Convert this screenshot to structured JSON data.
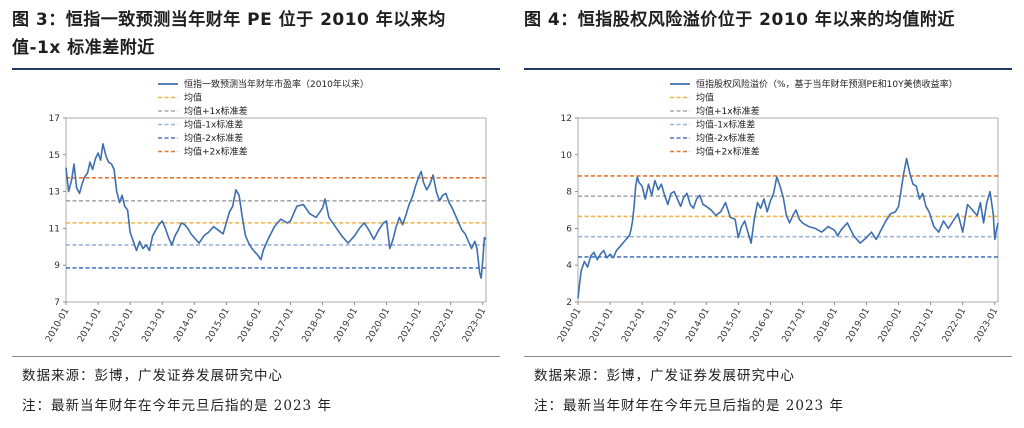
{
  "notes": {
    "source": "数据来源：彭博，广发证券发展研究中心",
    "remark": "注：最新当年财年在今年元旦后指的是 2023 年"
  },
  "chart_data": [
    {
      "id": "fig3",
      "type": "line",
      "title": "图 3：恒指一致预测当年财年 PE 位于 2010 年以来均值-1x 标准差附近",
      "title_lines": [
        "图 3：恒指一致预测当年财年 PE 位于 2010 年以来均",
        "值-1x 标准差附近"
      ],
      "xlabel": "",
      "ylabel": "",
      "ylim": [
        7,
        17
      ],
      "yticks": [
        7,
        9,
        11,
        13,
        15,
        17
      ],
      "xlim": [
        2010.0,
        2023.1
      ],
      "xticks": [
        "2010-01",
        "2011-01",
        "2012-01",
        "2013-01",
        "2014-01",
        "2015-01",
        "2016-01",
        "2017-01",
        "2018-01",
        "2019-01",
        "2020-01",
        "2021-01",
        "2022-01",
        "2023-01"
      ],
      "legend_position": "top-right",
      "series": [
        {
          "name": "恒指一致预测当年财年市盈率（2010年以来）",
          "color": "#3d6fb0",
          "x": [
            2010.0,
            2010.08,
            2010.17,
            2010.25,
            2010.33,
            2010.42,
            2010.5,
            2010.58,
            2010.67,
            2010.75,
            2010.83,
            2010.92,
            2011.0,
            2011.08,
            2011.15,
            2011.25,
            2011.33,
            2011.42,
            2011.5,
            2011.58,
            2011.67,
            2011.75,
            2011.83,
            2011.92,
            2012.0,
            2012.1,
            2012.2,
            2012.3,
            2012.4,
            2012.5,
            2012.6,
            2012.7,
            2012.8,
            2012.9,
            2013.0,
            2013.1,
            2013.2,
            2013.3,
            2013.4,
            2013.5,
            2013.6,
            2013.7,
            2013.8,
            2013.9,
            2014.0,
            2014.15,
            2014.3,
            2014.45,
            2014.6,
            2014.75,
            2014.9,
            2015.0,
            2015.1,
            2015.2,
            2015.3,
            2015.4,
            2015.5,
            2015.6,
            2015.7,
            2015.8,
            2015.9,
            2016.0,
            2016.08,
            2016.15,
            2016.3,
            2016.5,
            2016.7,
            2016.9,
            2017.0,
            2017.2,
            2017.4,
            2017.6,
            2017.8,
            2018.0,
            2018.08,
            2018.2,
            2018.4,
            2018.6,
            2018.8,
            2019.0,
            2019.15,
            2019.3,
            2019.45,
            2019.6,
            2019.75,
            2019.9,
            2020.0,
            2020.1,
            2020.2,
            2020.3,
            2020.4,
            2020.5,
            2020.6,
            2020.7,
            2020.8,
            2020.9,
            2021.0,
            2021.08,
            2021.15,
            2021.25,
            2021.35,
            2021.45,
            2021.55,
            2021.65,
            2021.75,
            2021.85,
            2021.95,
            2022.05,
            2022.15,
            2022.25,
            2022.35,
            2022.45,
            2022.55,
            2022.65,
            2022.75,
            2022.82,
            2022.9,
            2022.95,
            2023.0,
            2023.05,
            2023.1
          ],
          "values": [
            14.3,
            13.0,
            13.6,
            14.5,
            13.2,
            12.9,
            13.4,
            13.8,
            14.0,
            14.6,
            14.2,
            14.8,
            15.1,
            14.7,
            15.6,
            14.9,
            14.6,
            14.5,
            14.2,
            13.0,
            12.4,
            12.8,
            12.2,
            12.0,
            10.8,
            10.3,
            9.8,
            10.3,
            9.9,
            10.1,
            9.8,
            10.6,
            10.9,
            11.2,
            11.4,
            11.0,
            10.5,
            10.1,
            10.6,
            10.9,
            11.3,
            11.2,
            11.0,
            10.7,
            10.5,
            10.2,
            10.6,
            10.8,
            11.1,
            10.9,
            10.7,
            11.3,
            11.9,
            12.2,
            13.1,
            12.8,
            11.6,
            10.6,
            10.2,
            9.9,
            9.7,
            9.5,
            9.3,
            9.8,
            10.4,
            11.1,
            11.5,
            11.3,
            11.4,
            12.2,
            12.3,
            11.8,
            11.6,
            12.1,
            12.6,
            11.6,
            11.1,
            10.6,
            10.2,
            10.6,
            11.0,
            11.3,
            10.9,
            10.4,
            10.9,
            11.3,
            11.4,
            9.9,
            10.4,
            11.1,
            11.6,
            11.2,
            11.7,
            12.3,
            12.7,
            13.3,
            13.8,
            14.1,
            13.5,
            13.1,
            13.4,
            13.9,
            13.0,
            12.5,
            12.8,
            12.9,
            12.4,
            12.1,
            11.7,
            11.3,
            10.9,
            10.7,
            10.3,
            9.9,
            10.3,
            9.9,
            8.6,
            8.3,
            9.3,
            10.5,
            10.4
          ]
        }
      ],
      "ref_lines": [
        {
          "name": "均值",
          "value": 11.3,
          "color": "#f0b24a"
        },
        {
          "name": "均值+1x标准差",
          "value": 12.5,
          "color": "#a9a9a9"
        },
        {
          "name": "均值-1x标准差",
          "value": 10.1,
          "color": "#9fb3d6"
        },
        {
          "name": "均值-2x标准差",
          "value": 8.85,
          "color": "#4b78c0"
        },
        {
          "name": "均值+2x标准差",
          "value": 13.75,
          "color": "#e07832"
        }
      ]
    },
    {
      "id": "fig4",
      "type": "line",
      "title": "图 4：恒指股权风险溢价位于 2010 年以来的均值附近",
      "title_lines": [
        "图 4：恒指股权风险溢价位于 2010 年以来的均值附近"
      ],
      "xlabel": "",
      "ylabel": "",
      "ylim": [
        2,
        12
      ],
      "yticks": [
        2,
        4,
        6,
        8,
        10,
        12
      ],
      "xlim": [
        2010.0,
        2023.1
      ],
      "xticks": [
        "2010-01",
        "2011-01",
        "2012-01",
        "2013-01",
        "2014-01",
        "2015-01",
        "2016-01",
        "2017-01",
        "2018-01",
        "2019-01",
        "2020-01",
        "2021-01",
        "2022-01",
        "2023-01"
      ],
      "legend_position": "top-right",
      "series": [
        {
          "name": "恒指股权风险溢价（%，基于当年财年预测PE和10Y美债收益率）",
          "color": "#3d6fb0",
          "x": [
            2010.0,
            2010.05,
            2010.1,
            2010.2,
            2010.3,
            2010.4,
            2010.5,
            2010.6,
            2010.7,
            2010.8,
            2010.9,
            2011.0,
            2011.1,
            2011.2,
            2011.3,
            2011.4,
            2011.5,
            2011.6,
            2011.65,
            2011.7,
            2011.75,
            2011.8,
            2011.85,
            2011.9,
            2012.0,
            2012.1,
            2012.2,
            2012.3,
            2012.4,
            2012.5,
            2012.6,
            2012.7,
            2012.8,
            2012.9,
            2013.0,
            2013.1,
            2013.2,
            2013.3,
            2013.4,
            2013.5,
            2013.6,
            2013.7,
            2013.8,
            2013.9,
            2014.0,
            2014.15,
            2014.3,
            2014.45,
            2014.6,
            2014.75,
            2014.9,
            2015.0,
            2015.1,
            2015.2,
            2015.3,
            2015.4,
            2015.5,
            2015.6,
            2015.7,
            2015.8,
            2015.9,
            2016.0,
            2016.1,
            2016.2,
            2016.3,
            2016.4,
            2016.5,
            2016.6,
            2016.7,
            2016.8,
            2016.9,
            2017.0,
            2017.2,
            2017.4,
            2017.6,
            2017.8,
            2018.0,
            2018.1,
            2018.2,
            2018.4,
            2018.6,
            2018.8,
            2019.0,
            2019.15,
            2019.3,
            2019.45,
            2019.6,
            2019.75,
            2019.9,
            2020.0,
            2020.08,
            2020.15,
            2020.25,
            2020.35,
            2020.45,
            2020.55,
            2020.65,
            2020.75,
            2020.85,
            2020.95,
            2021.1,
            2021.25,
            2021.4,
            2021.55,
            2021.7,
            2021.85,
            2022.0,
            2022.15,
            2022.3,
            2022.45,
            2022.55,
            2022.65,
            2022.75,
            2022.85,
            2022.95,
            2023.0,
            2023.05,
            2023.1
          ],
          "values": [
            2.2,
            3.0,
            3.7,
            4.2,
            3.9,
            4.5,
            4.7,
            4.3,
            4.6,
            4.8,
            4.4,
            4.6,
            4.4,
            4.8,
            5.0,
            5.2,
            5.4,
            5.6,
            5.9,
            6.4,
            7.2,
            8.3,
            8.8,
            8.5,
            8.3,
            7.6,
            8.4,
            7.8,
            8.6,
            8.1,
            8.4,
            7.8,
            7.3,
            7.9,
            8.0,
            7.6,
            7.2,
            7.7,
            7.9,
            7.3,
            7.1,
            7.6,
            7.8,
            7.3,
            7.2,
            7.0,
            6.7,
            6.9,
            7.4,
            6.6,
            6.5,
            5.5,
            6.1,
            6.4,
            5.8,
            5.2,
            6.5,
            7.4,
            7.1,
            7.6,
            6.9,
            7.5,
            7.9,
            8.8,
            8.3,
            7.7,
            6.7,
            6.3,
            6.7,
            7.0,
            6.5,
            6.3,
            6.1,
            6.0,
            5.8,
            6.1,
            5.9,
            5.6,
            5.9,
            6.3,
            5.6,
            5.2,
            5.5,
            5.8,
            5.4,
            5.9,
            6.4,
            6.8,
            6.9,
            7.2,
            8.1,
            8.9,
            9.8,
            9.0,
            8.4,
            8.3,
            7.6,
            7.9,
            7.2,
            6.9,
            6.1,
            5.8,
            6.4,
            6.0,
            6.4,
            6.8,
            5.8,
            7.3,
            7.0,
            6.7,
            7.4,
            6.3,
            7.4,
            8.0,
            6.8,
            5.4,
            5.9,
            6.3
          ]
        }
      ],
      "ref_lines": [
        {
          "name": "均值",
          "value": 6.65,
          "color": "#f0b24a"
        },
        {
          "name": "均值+1x标准差",
          "value": 7.75,
          "color": "#a9a9a9"
        },
        {
          "name": "均值-1x标准差",
          "value": 5.55,
          "color": "#9fb3d6"
        },
        {
          "name": "均值-2x标准差",
          "value": 4.45,
          "color": "#4b78c0"
        },
        {
          "name": "均值+2x标准差",
          "value": 8.85,
          "color": "#e07832"
        }
      ]
    }
  ]
}
